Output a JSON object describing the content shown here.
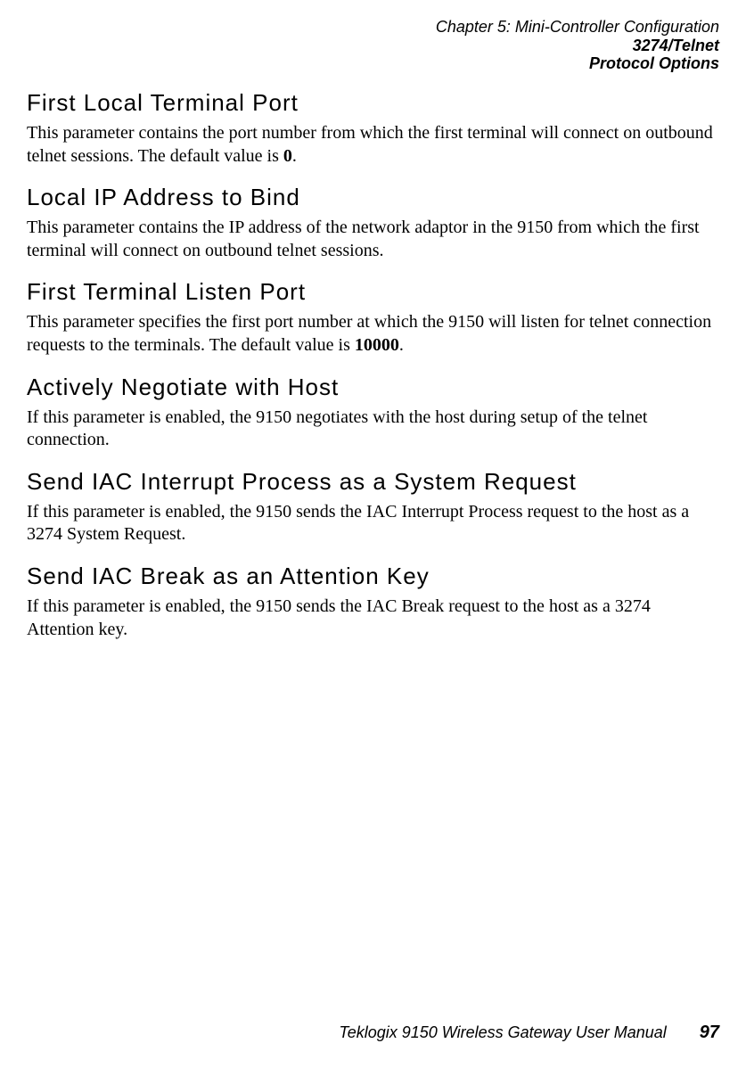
{
  "header": {
    "chapter": "Chapter 5:  Mini-Controller Configuration",
    "topic": "3274/Telnet",
    "subtopic": "Protocol Options"
  },
  "sections": [
    {
      "title": "First Local Terminal Port",
      "body_pre": "This parameter contains the port number from which the first terminal will connect on outbound telnet sessions. The default value is ",
      "body_bold": "0",
      "body_post": "."
    },
    {
      "title": "Local IP Address to Bind",
      "body_pre": "This parameter contains the IP address of the network adaptor in the 9150 from which the first terminal will connect on outbound telnet sessions.",
      "body_bold": "",
      "body_post": ""
    },
    {
      "title": "First Terminal Listen Port",
      "body_pre": "This parameter specifies the first port number at which the 9150 will listen for telnet connection requests to the terminals. The default value is ",
      "body_bold": "10000",
      "body_post": "."
    },
    {
      "title": "Actively Negotiate with Host",
      "body_pre": "If this parameter is enabled, the 9150 negotiates with the host during setup of the telnet connection.",
      "body_bold": "",
      "body_post": ""
    },
    {
      "title": "Send IAC Interrupt Process as a System Request",
      "body_pre": "If this parameter is enabled, the 9150 sends the IAC Interrupt Process request to the host as a 3274 System Request.",
      "body_bold": "",
      "body_post": ""
    },
    {
      "title": "Send IAC Break as an Attention Key",
      "body_pre": "If this parameter is enabled, the 9150 sends the IAC Break request to the host as a 3274 Attention key.",
      "body_bold": "",
      "body_post": ""
    }
  ],
  "footer": {
    "manual": "Teklogix 9150 Wireless Gateway User Manual",
    "page": "97"
  }
}
